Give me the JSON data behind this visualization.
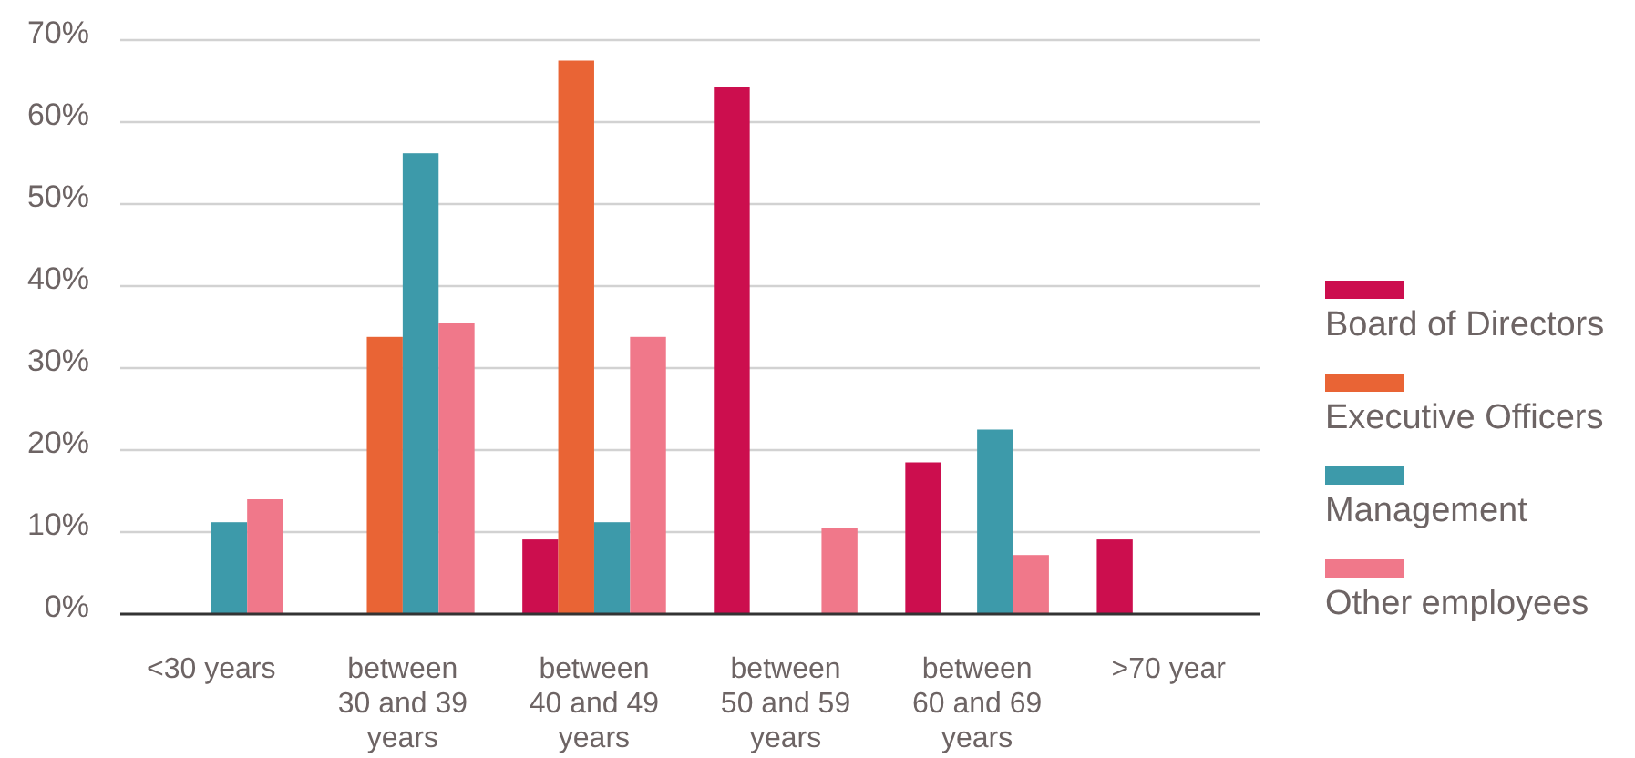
{
  "chart_data": {
    "type": "bar",
    "categories": [
      "<30 years",
      "between 30 and 39 years",
      "between 40 and 49 years",
      "between 50 and 59 years",
      "between 60 and 69 years",
      ">70 year"
    ],
    "series": [
      {
        "name": "Board of Directors",
        "color": "#cc0e4e",
        "values": [
          null,
          null,
          9.1,
          64.3,
          18.5,
          9.1
        ]
      },
      {
        "name": "Executive Officers",
        "color": "#e96435",
        "values": [
          null,
          33.8,
          67.5,
          null,
          null,
          null
        ]
      },
      {
        "name": "Management",
        "color": "#3d9aaa",
        "values": [
          11.2,
          56.2,
          11.2,
          null,
          22.5,
          null
        ]
      },
      {
        "name": "Other employees",
        "color": "#f0788a",
        "values": [
          14,
          35.5,
          33.8,
          10.5,
          7.2,
          null
        ]
      }
    ],
    "ylim": [
      0,
      70
    ],
    "yticks": [
      {
        "value": 0,
        "label": "0%"
      },
      {
        "value": 10,
        "label": "10%"
      },
      {
        "value": 20,
        "label": "20%"
      },
      {
        "value": 30,
        "label": "30%"
      },
      {
        "value": 40,
        "label": "40%"
      },
      {
        "value": 50,
        "label": "50%"
      },
      {
        "value": 60,
        "label": "60%"
      },
      {
        "value": 70,
        "label": "70%"
      }
    ],
    "grid": "y",
    "legend": "right"
  }
}
